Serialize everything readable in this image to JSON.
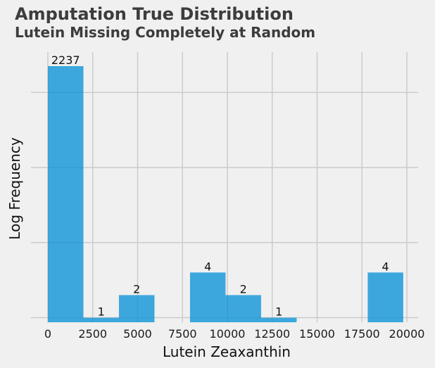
{
  "title": "Amputation True Distribution",
  "subtitle": "Lutein Missing Completely at Random",
  "colors": {
    "background": "#f0f0f0",
    "bar": "#008fd5",
    "grid": "#cbcbcb"
  },
  "chart_data": {
    "type": "histogram",
    "title": "Amputation True Distribution",
    "subtitle": "Lutein Missing Completely at Random",
    "xlabel": "Lutein Zeaxanthin",
    "ylabel": "Log Frequency",
    "xlim": [
      0,
      20000
    ],
    "yscale": "log",
    "ylim": [
      0.87,
      2237
    ],
    "grid": true,
    "x_ticks": [
      0,
      2500,
      5000,
      7500,
      10000,
      12500,
      15000,
      17500,
      20000
    ],
    "x_tick_labels": [
      "0",
      "2500",
      "5000",
      "7500",
      "10000",
      "12500",
      "15000",
      "17500",
      "20000"
    ],
    "y_grid_values": [
      1,
      10,
      100,
      1000
    ],
    "bins": [
      {
        "start": 0,
        "end": 1980,
        "count": 2237,
        "label": "2237"
      },
      {
        "start": 1980,
        "end": 3960,
        "count": 1,
        "label": "1"
      },
      {
        "start": 3960,
        "end": 5940,
        "count": 2,
        "label": "2"
      },
      {
        "start": 5940,
        "end": 7920,
        "count": 0,
        "label": ""
      },
      {
        "start": 7920,
        "end": 9900,
        "count": 4,
        "label": "4"
      },
      {
        "start": 9900,
        "end": 11880,
        "count": 2,
        "label": "2"
      },
      {
        "start": 11880,
        "end": 13860,
        "count": 1,
        "label": "1"
      },
      {
        "start": 13860,
        "end": 15840,
        "count": 0,
        "label": ""
      },
      {
        "start": 15840,
        "end": 17820,
        "count": 0,
        "label": ""
      },
      {
        "start": 17820,
        "end": 19800,
        "count": 4,
        "label": "4"
      }
    ]
  }
}
